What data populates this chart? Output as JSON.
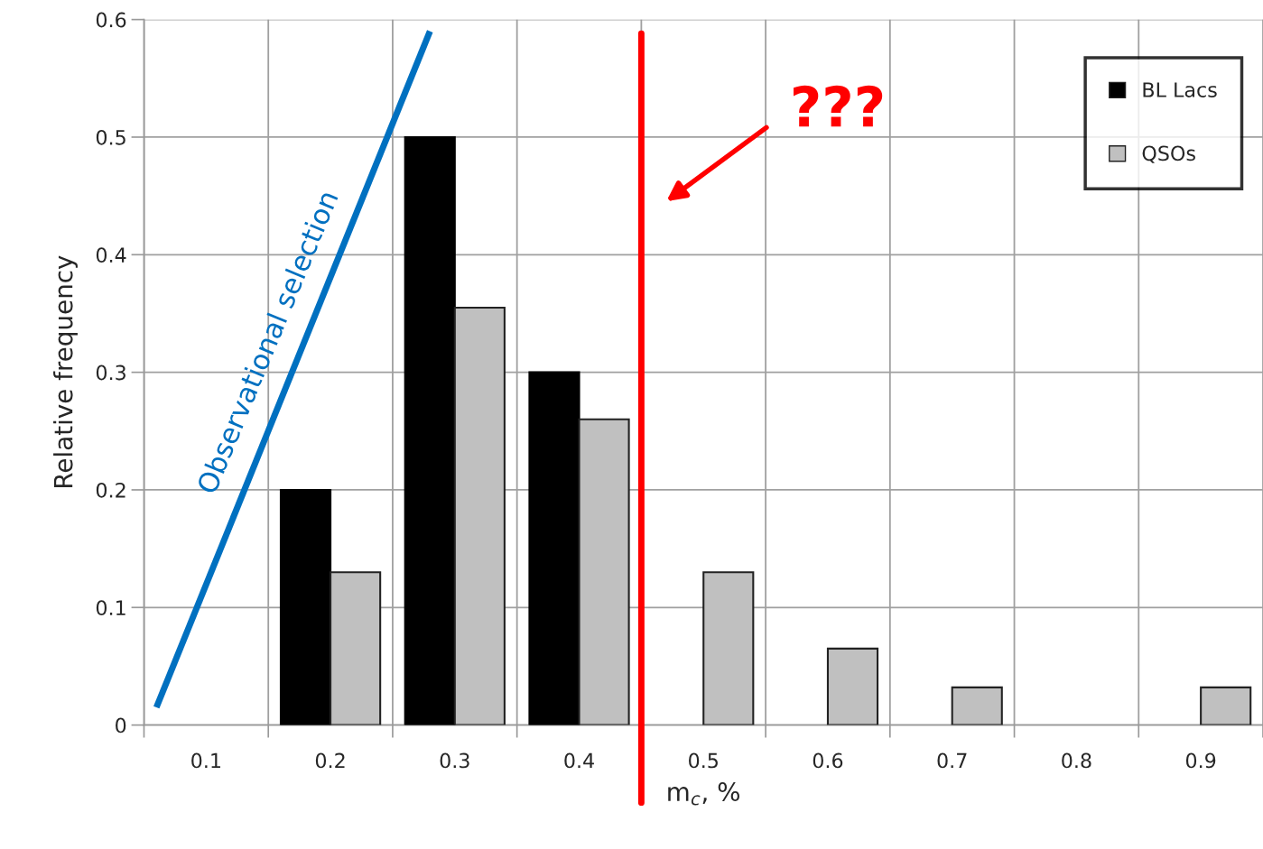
{
  "chart_data": {
    "type": "bar",
    "x": [
      0.1,
      0.2,
      0.3,
      0.4,
      0.5,
      0.6,
      0.7,
      0.8,
      0.9
    ],
    "series": [
      {
        "name": "BL Lacs",
        "color": "#000000",
        "values": [
          0,
          0.2,
          0.5,
          0.3,
          0,
          0,
          0,
          0,
          0
        ]
      },
      {
        "name": "QSOs",
        "color": "#c0c0c0",
        "values": [
          0,
          0.13,
          0.355,
          0.26,
          0.13,
          0.065,
          0.032,
          0,
          0.032
        ]
      },
      {
        "type": "line",
        "color": "#0070c0",
        "x": [
          0.06,
          0.28
        ],
        "values": [
          0.015,
          0.59
        ]
      }
    ],
    "xlim": [
      0.05,
      0.95
    ],
    "xticks": [
      {
        "value": 0.05,
        "label": null
      },
      0.1,
      {
        "value": 0.15,
        "label": null
      },
      0.2,
      {
        "value": 0.25,
        "label": null
      },
      0.3,
      {
        "value": 0.35,
        "label": null
      },
      0.4,
      {
        "value": 0.45,
        "label": null
      },
      0.5,
      {
        "value": 0.55,
        "label": null
      },
      0.6,
      {
        "value": 0.65,
        "label": null
      },
      0.7,
      {
        "value": 0.75,
        "label": null
      },
      0.8,
      {
        "value": 0.85,
        "label": null
      },
      0.9,
      {
        "value": 0.95,
        "label": null
      }
    ],
    "ylim": [
      0,
      0.6
    ],
    "yticks": [
      0,
      0.1,
      0.2,
      0.3,
      0.4,
      0.5,
      0.6
    ],
    "xlabel": "m$_{c}$, %",
    "ylabel": "Relative frequency",
    "ref_lines": [
      {
        "axis": "x",
        "value": 0.45,
        "color": "#ff0000"
      }
    ],
    "annotations": [
      "Observational selection",
      "???"
    ],
    "grid": true,
    "legend": "top right"
  }
}
